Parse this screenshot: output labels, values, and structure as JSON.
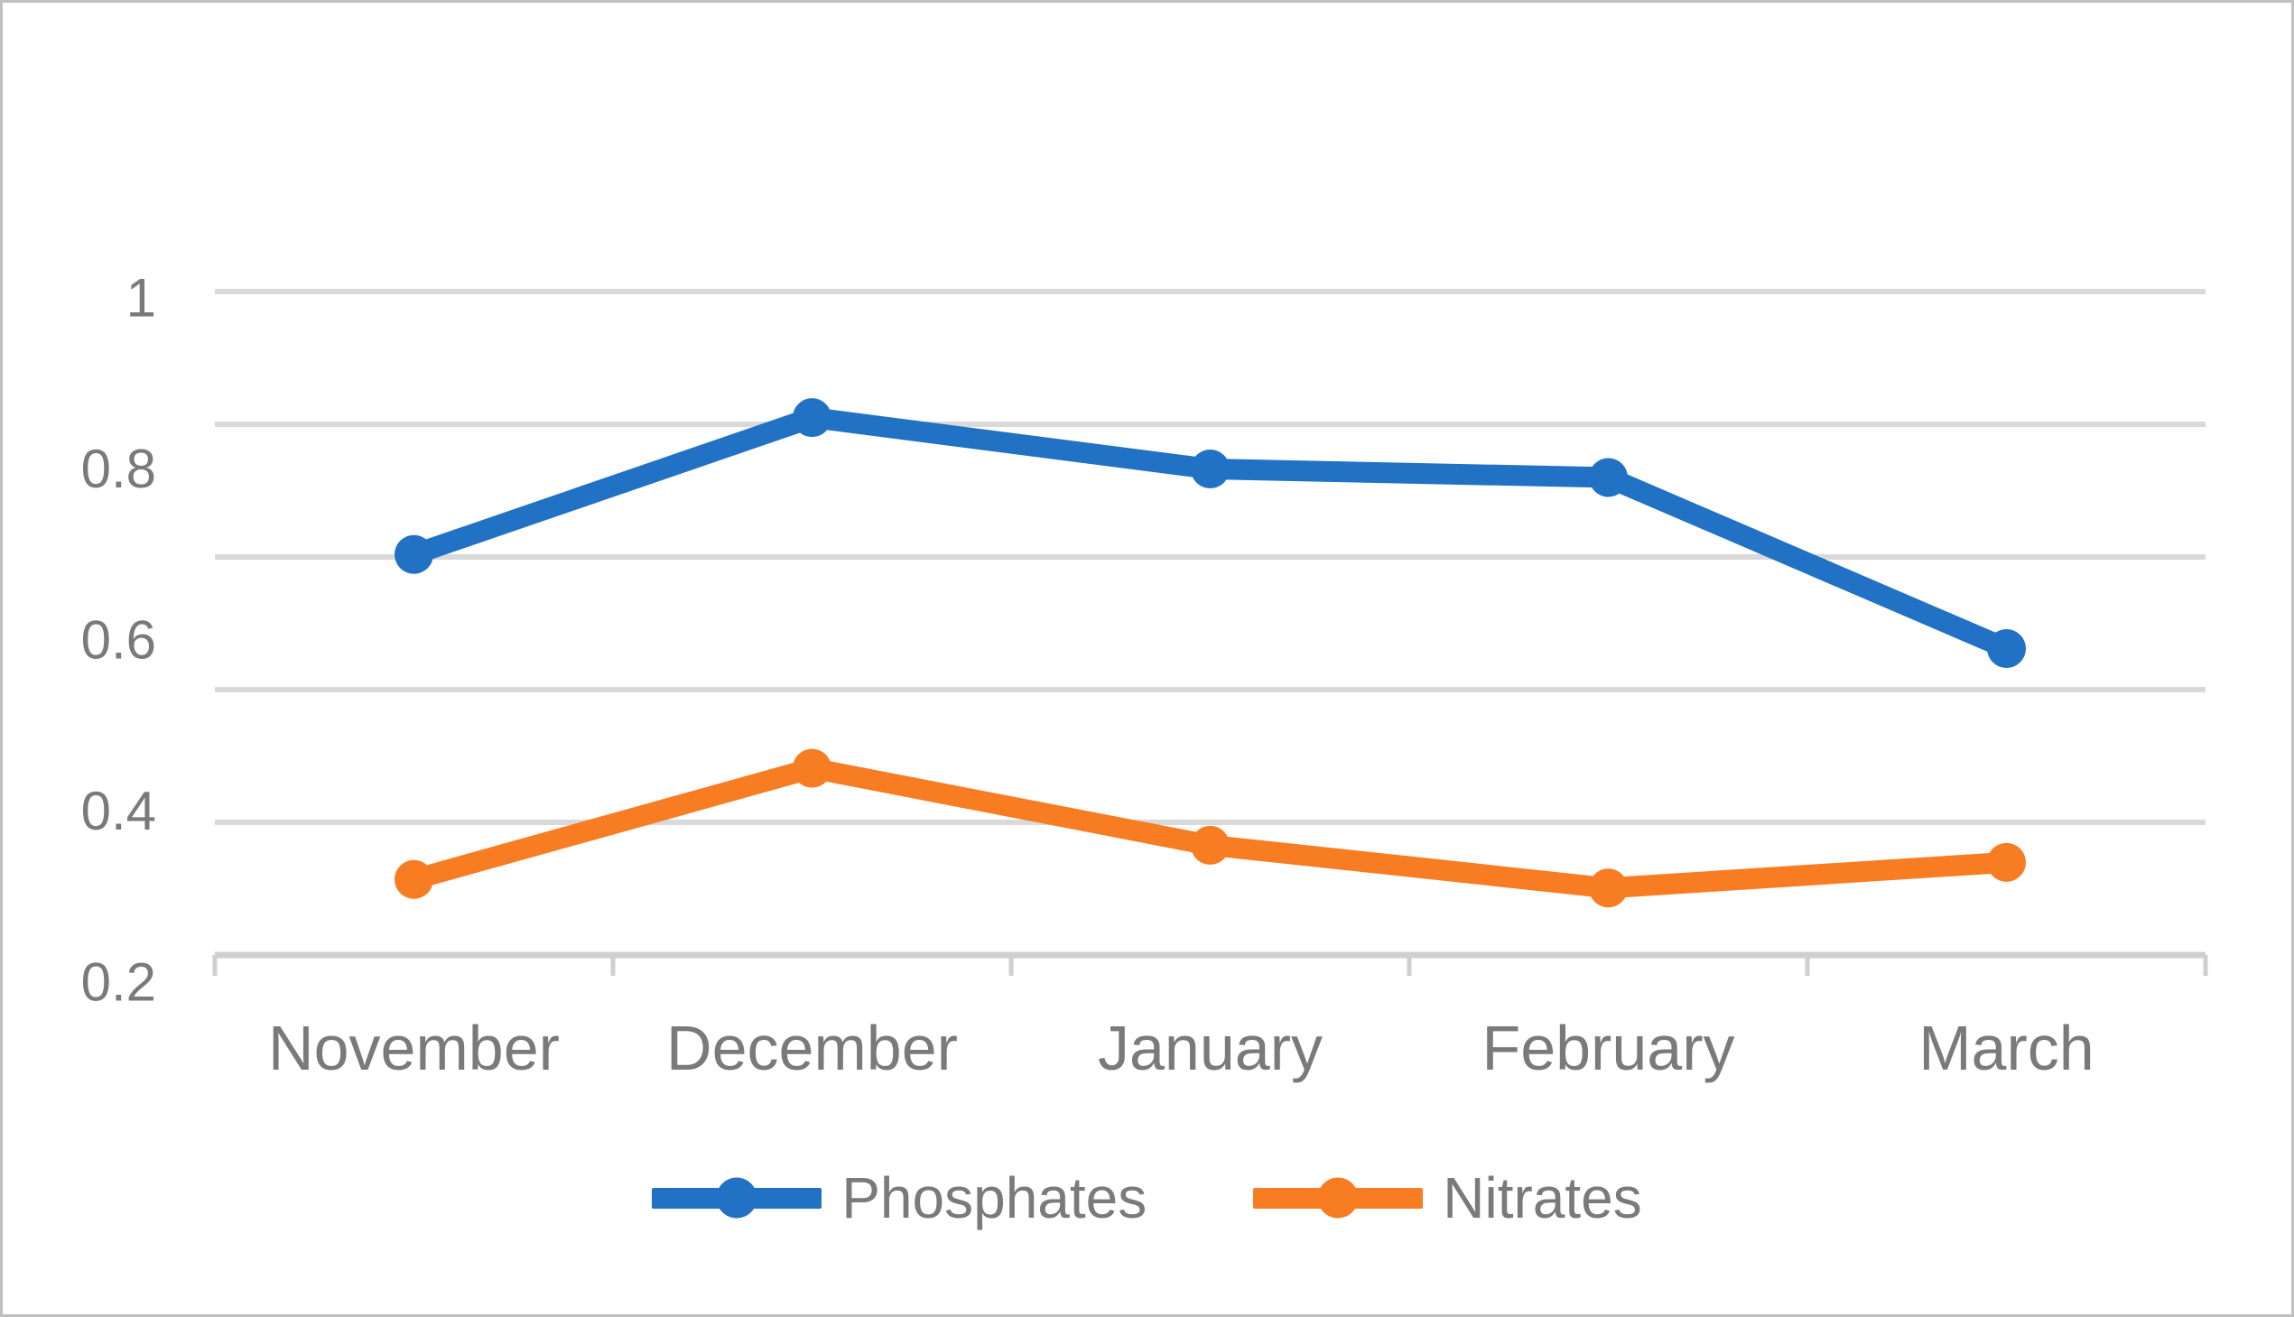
{
  "chart_data": {
    "type": "line",
    "title": "",
    "xlabel": "",
    "ylabel": "",
    "categories": [
      "November",
      "December",
      "January",
      "February",
      "March"
    ],
    "series": [
      {
        "name": "Phosphates",
        "color": "#2171c4",
        "values": [
          0.7,
          0.86,
          0.8,
          0.79,
          0.59
        ]
      },
      {
        "name": "Nitrates",
        "color": "#f87c22",
        "values": [
          0.32,
          0.45,
          0.36,
          0.31,
          0.34
        ]
      }
    ],
    "y_axis": {
      "min": 0.2,
      "max": 1.0,
      "tick_labels": [
        "0.2",
        "0.4",
        "0.6",
        "0.8",
        "1"
      ],
      "gridline_count": 6,
      "grid_on": true
    },
    "legend_position": "bottom-center",
    "marker_style": "circle",
    "colors": {
      "grid": "#d9d9d9",
      "axis": "#cfcfcf",
      "text": "#7a7a7a",
      "figure_border": "#bfbfbf",
      "background": "#ffffff"
    }
  }
}
